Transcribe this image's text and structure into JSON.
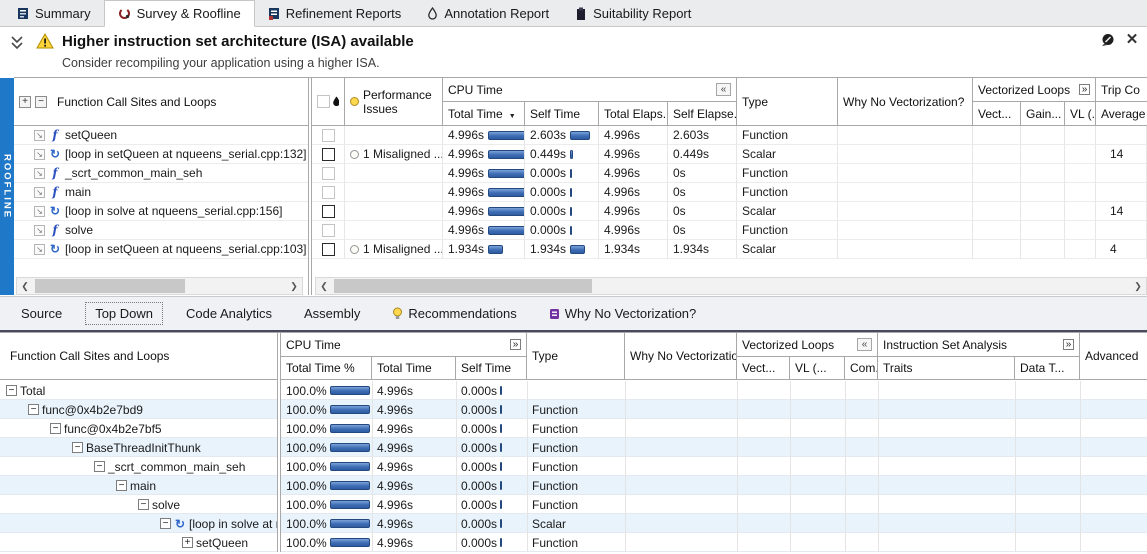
{
  "tabs": [
    {
      "label": "Summary"
    },
    {
      "label": "Survey & Roofline"
    },
    {
      "label": "Refinement Reports"
    },
    {
      "label": "Annotation Report"
    },
    {
      "label": "Suitability Report"
    }
  ],
  "banner": {
    "title": "Higher instruction set architecture (ISA) available",
    "subtitle": "Consider recompiling your application using a higher ISA.",
    "close_label": "✕"
  },
  "roofline_label": "ROOFLINE",
  "colors": {
    "accent_blue": "#1f78c8",
    "bar_blue": "#3e6db4",
    "selection": "#c9e2f5",
    "warning_yellow": "#ffd43a",
    "wnv_purple": "#7030a0"
  },
  "top_grid": {
    "tree_header": "Function Call Sites and Loops",
    "expand_all": "+",
    "collapse_all": "−",
    "perf_header": "Performance Issues",
    "cpu_group": "CPU Time",
    "col_total": "Total Time",
    "col_self": "Self Time",
    "col_telaps": "Total Elaps...",
    "col_selaps": "Self Elapse...",
    "col_type": "Type",
    "col_wnv": "Why No Vectorization?",
    "vect_group": "Vectorized Loops",
    "col_vect": "Vect...",
    "col_gain": "Gain...",
    "col_vl": "VL (...",
    "trip_group": "Trip Co",
    "col_trip_avg": "Average",
    "rows": [
      {
        "name": "setQueen",
        "icon": "function",
        "checkbox": "faint",
        "bold": true,
        "perf": "",
        "total": "4.996s",
        "total_s": 4.996,
        "self": "2.603s",
        "self_s": 2.603,
        "telaps": "4.996s",
        "selaps": "2.603s",
        "type": "Function",
        "trip": ""
      },
      {
        "name": "[loop in setQueen at nqueens_serial.cpp:132]",
        "icon": "loop",
        "checkbox": "solid",
        "bold": false,
        "perf": "1 Misaligned ...",
        "total": "4.996s",
        "total_s": 4.996,
        "self": "0.449s",
        "self_s": 0.449,
        "telaps": "4.996s",
        "selaps": "0.449s",
        "type": "Scalar",
        "trip": "14"
      },
      {
        "name": "_scrt_common_main_seh",
        "icon": "function",
        "checkbox": "faint",
        "bold": false,
        "perf": "",
        "total": "4.996s",
        "total_s": 4.996,
        "self": "0.000s",
        "self_s": 0,
        "telaps": "4.996s",
        "selaps": "0s",
        "type": "Function",
        "trip": ""
      },
      {
        "name": "main",
        "icon": "function",
        "checkbox": "faint",
        "bold": false,
        "perf": "",
        "total": "4.996s",
        "total_s": 4.996,
        "self": "0.000s",
        "self_s": 0,
        "telaps": "4.996s",
        "selaps": "0s",
        "type": "Function",
        "trip": ""
      },
      {
        "name": "[loop in solve at nqueens_serial.cpp:156]",
        "icon": "loop",
        "checkbox": "solid",
        "bold": false,
        "perf": "",
        "total": "4.996s",
        "total_s": 4.996,
        "self": "0.000s",
        "self_s": 0,
        "telaps": "4.996s",
        "selaps": "0s",
        "type": "Scalar",
        "trip": "14"
      },
      {
        "name": "solve",
        "icon": "function",
        "checkbox": "faint",
        "bold": false,
        "perf": "",
        "total": "4.996s",
        "total_s": 4.996,
        "self": "0.000s",
        "self_s": 0,
        "telaps": "4.996s",
        "selaps": "0s",
        "type": "Function",
        "trip": ""
      },
      {
        "name": "[loop in setQueen at nqueens_serial.cpp:103]",
        "icon": "loop",
        "checkbox": "solid",
        "bold": false,
        "perf": "1 Misaligned ...",
        "total": "1.934s",
        "total_s": 1.934,
        "self": "1.934s",
        "self_s": 1.934,
        "telaps": "1.934s",
        "selaps": "1.934s",
        "type": "Scalar",
        "trip": "4"
      }
    ]
  },
  "bottom_tabs": [
    {
      "label": "Source"
    },
    {
      "label": "Top Down"
    },
    {
      "label": "Code Analytics"
    },
    {
      "label": "Assembly"
    },
    {
      "label": "Recommendations"
    },
    {
      "label": "Why No Vectorization?"
    }
  ],
  "bottom_grid": {
    "tree_header": "Function Call Sites and Loops",
    "cpu_group": "CPU Time",
    "col_pct": "Total Time %",
    "col_total": "Total Time",
    "col_self": "Self Time",
    "col_type": "Type",
    "col_wnv": "Why No Vectorization?",
    "vect_group": "Vectorized Loops",
    "col_vect": "Vect...",
    "col_vl": "VL (...",
    "col_com": "Com..",
    "isa_group": "Instruction Set Analysis",
    "col_traits": "Traits",
    "col_datat": "Data T...",
    "col_advanced": "Advanced",
    "rows": [
      {
        "level": 0,
        "exp": "minus",
        "icon": "",
        "name": "Total",
        "pct": "100.0%",
        "pct_v": 100,
        "total": "4.996s",
        "self": "0.000s",
        "self_s": 0,
        "type": "",
        "selected": false
      },
      {
        "level": 1,
        "exp": "minus",
        "icon": "",
        "name": "func@0x4b2e7bd9",
        "pct": "100.0%",
        "pct_v": 100,
        "total": "4.996s",
        "self": "0.000s",
        "self_s": 0,
        "type": "Function",
        "selected": false
      },
      {
        "level": 2,
        "exp": "minus",
        "icon": "",
        "name": "func@0x4b2e7bf5",
        "pct": "100.0%",
        "pct_v": 100,
        "total": "4.996s",
        "self": "0.000s",
        "self_s": 0,
        "type": "Function",
        "selected": false
      },
      {
        "level": 3,
        "exp": "minus",
        "icon": "",
        "name": "BaseThreadInitThunk",
        "pct": "100.0%",
        "pct_v": 100,
        "total": "4.996s",
        "self": "0.000s",
        "self_s": 0,
        "type": "Function",
        "selected": false
      },
      {
        "level": 4,
        "exp": "minus",
        "icon": "",
        "name": "_scrt_common_main_seh",
        "pct": "100.0%",
        "pct_v": 100,
        "total": "4.996s",
        "self": "0.000s",
        "self_s": 0,
        "type": "Function",
        "selected": false
      },
      {
        "level": 5,
        "exp": "minus",
        "icon": "",
        "name": "main",
        "pct": "100.0%",
        "pct_v": 100,
        "total": "4.996s",
        "self": "0.000s",
        "self_s": 0,
        "type": "Function",
        "selected": false
      },
      {
        "level": 6,
        "exp": "minus",
        "icon": "",
        "name": "solve",
        "pct": "100.0%",
        "pct_v": 100,
        "total": "4.996s",
        "self": "0.000s",
        "self_s": 0,
        "type": "Function",
        "selected": false
      },
      {
        "level": 7,
        "exp": "minus",
        "icon": "loop",
        "name": "[loop in solve at nqueens_",
        "pct": "100.0%",
        "pct_v": 100,
        "total": "4.996s",
        "self": "0.000s",
        "self_s": 0,
        "type": "Scalar",
        "selected": false
      },
      {
        "level": 8,
        "exp": "plus",
        "icon": "",
        "name": "setQueen",
        "pct": "100.0%",
        "pct_v": 100,
        "total": "4.996s",
        "self": "0.000s",
        "self_s": 0,
        "type": "Function",
        "selected": true
      }
    ]
  }
}
